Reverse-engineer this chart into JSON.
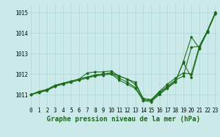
{
  "title": "Graphe pression niveau de la mer (hPa)",
  "hours": [
    0,
    1,
    2,
    3,
    4,
    5,
    6,
    7,
    8,
    9,
    10,
    11,
    12,
    13,
    14,
    15,
    16,
    17,
    18,
    19,
    20,
    21,
    22,
    23
  ],
  "ylim": [
    1010.4,
    1015.4
  ],
  "yticks": [
    1011,
    1012,
    1013,
    1014,
    1015
  ],
  "xlim": [
    -0.3,
    23.3
  ],
  "background_color": "#cce9e9",
  "grid_color": "#aad4d4",
  "line_color": "#1a6b1a",
  "series": [
    [
      1011.0,
      1011.15,
      1011.25,
      1011.45,
      1011.55,
      1011.65,
      1011.75,
      1011.85,
      1011.95,
      1012.0,
      1012.05,
      1011.9,
      1011.75,
      1011.6,
      1010.8,
      1010.75,
      1011.1,
      1011.4,
      1011.7,
      1011.9,
      1013.3,
      1013.35,
      1014.1,
      1015.0
    ],
    [
      1011.0,
      1011.15,
      1011.25,
      1011.45,
      1011.55,
      1011.65,
      1011.75,
      1012.05,
      1012.1,
      1012.1,
      1012.15,
      1011.9,
      1011.75,
      1011.5,
      1010.8,
      1010.75,
      1011.15,
      1011.5,
      1011.8,
      1012.05,
      1012.0,
      1013.35,
      1014.1,
      1015.0
    ],
    [
      1011.0,
      1011.1,
      1011.2,
      1011.4,
      1011.55,
      1011.65,
      1011.75,
      1011.85,
      1011.95,
      1012.0,
      1012.05,
      1011.8,
      1011.6,
      1011.35,
      1010.75,
      1010.7,
      1011.05,
      1011.35,
      1011.65,
      1012.55,
      1011.85,
      1013.25,
      1014.05,
      1014.95
    ],
    [
      1011.0,
      1011.1,
      1011.2,
      1011.4,
      1011.5,
      1011.6,
      1011.7,
      1011.8,
      1011.9,
      1011.95,
      1012.0,
      1011.7,
      1011.5,
      1011.3,
      1010.7,
      1010.65,
      1011.0,
      1011.3,
      1011.6,
      1012.6,
      1013.8,
      1013.25,
      1014.05,
      1014.95
    ]
  ],
  "marker": "o",
  "markersize": 1.8,
  "linewidth": 0.8,
  "title_fontsize": 7,
  "tick_fontsize": 5.5,
  "title_fontweight": "bold",
  "figsize": [
    3.2,
    2.0
  ],
  "dpi": 100
}
